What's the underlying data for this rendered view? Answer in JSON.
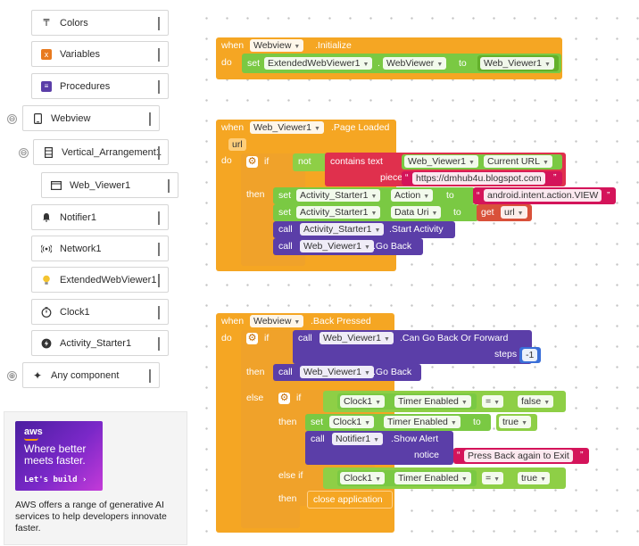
{
  "sidebar": {
    "items": [
      {
        "label": "Colors",
        "icon": "colors-icon"
      },
      {
        "label": "Variables",
        "icon": "variables-icon"
      },
      {
        "label": "Procedures",
        "icon": "procedures-icon"
      },
      {
        "label": "Webview",
        "icon": "phone-icon"
      },
      {
        "label": "Vertical_Arrangement1",
        "icon": "vertical-arrangement-icon"
      },
      {
        "label": "Web_Viewer1",
        "icon": "web-viewer-icon"
      },
      {
        "label": "Notifier1",
        "icon": "bell-icon"
      },
      {
        "label": "Network1",
        "icon": "network-icon"
      },
      {
        "label": "ExtendedWebViewer1",
        "icon": "bulb-icon"
      },
      {
        "label": "Clock1",
        "icon": "clock-icon"
      },
      {
        "label": "Activity_Starter1",
        "icon": "activity-icon"
      },
      {
        "label": "Any component",
        "icon": "sparkle-icon"
      }
    ],
    "toggles": [
      "⊖",
      "⊖",
      "⊕"
    ]
  },
  "ad": {
    "brand": "aws",
    "headline_1": "Where better",
    "headline_2": "meets faster.",
    "cta": "Let's build ›",
    "body": "AWS offers a range of generative AI services to help developers innovate faster."
  },
  "blocks": {
    "init": {
      "when": "when",
      "component": "Webview",
      "event": ".Initialize",
      "do": "do",
      "set": "set",
      "target": "ExtendedWebViewer1",
      "dot": ".",
      "property": "WebViewer",
      "to": "to",
      "value": "Web_Viewer1"
    },
    "page_loaded": {
      "when": "when",
      "component": "Web_Viewer1",
      "event": ".Page Loaded",
      "param": "url",
      "do": "do",
      "if": "if",
      "not": "not",
      "contains_text": "contains text",
      "text_component": "Web_Viewer1",
      "text_property": "Current URL",
      "piece": "piece",
      "piece_value": "https://dmhub4u.blogspot.com",
      "then": "then",
      "set1": "set",
      "set1_component": "Activity_Starter1",
      "set1_property": "Action",
      "set1_to": "to",
      "set1_value": "android.intent.action.VIEW",
      "set2": "set",
      "set2_component": "Activity_Starter1",
      "set2_property": "Data Uri",
      "set2_to": "to",
      "get": "get",
      "get_var": "url",
      "call1": "call",
      "call1_component": "Activity_Starter1",
      "call1_method": ".Start Activity",
      "call2": "call",
      "call2_component": "Web_Viewer1",
      "call2_method": ".Go Back"
    },
    "back_pressed": {
      "when": "when",
      "component": "Webview",
      "event": ".Back Pressed",
      "do": "do",
      "if": "if",
      "call": "call",
      "call_component": "Web_Viewer1",
      "call_method": ".Can Go Back Or Forward",
      "steps": "steps",
      "steps_value": "-1",
      "then": "then",
      "then_call": "call",
      "then_component": "Web_Viewer1",
      "then_method": ".Go Back",
      "else": "else",
      "inner_if": "if",
      "cmp1_component": "Clock1",
      "cmp1_property": "Timer Enabled",
      "cmp1_op": "=",
      "cmp1_value": "false",
      "inner_then": "then",
      "set": "set",
      "set_component": "Clock1",
      "set_property": "Timer Enabled",
      "set_to": "to",
      "set_value": "true",
      "alert_call": "call",
      "alert_component": "Notifier1",
      "alert_method": ".Show Alert",
      "notice": "notice",
      "notice_value": "Press Back again to Exit",
      "else_if": "else if",
      "cmp2_component": "Clock1",
      "cmp2_property": "Timer Enabled",
      "cmp2_op": "=",
      "cmp2_value": "true",
      "then2": "then",
      "close": "close application"
    }
  },
  "colors": {
    "event": "#f5a623",
    "setter": "#7ac943",
    "method": "#5b3ea8",
    "text": "#e0304d",
    "logic": "#8ecf46"
  }
}
